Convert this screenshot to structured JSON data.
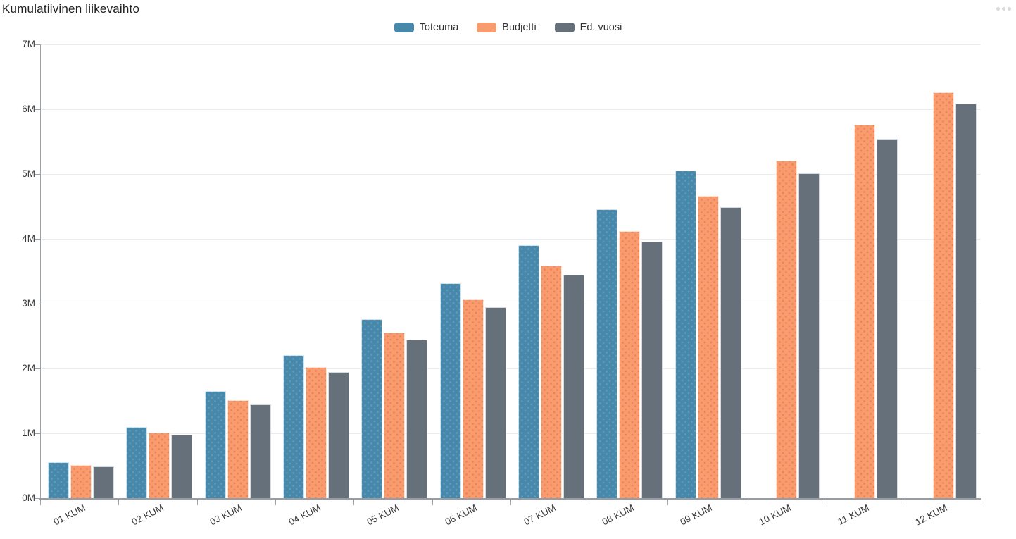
{
  "header": {
    "title": "Kumulatiivinen liikevaihto",
    "menu_icon": "ellipsis-icon"
  },
  "chart_data": {
    "type": "bar",
    "title": "Kumulatiivinen liikevaihto",
    "units": "M",
    "categories": [
      "01 KUM",
      "02 KUM",
      "03 KUM",
      "04 KUM",
      "05 KUM",
      "06 KUM",
      "07 KUM",
      "08 KUM",
      "09 KUM",
      "10 KUM",
      "11 KUM",
      "12 KUM"
    ],
    "series": [
      {
        "name": "Toteuma",
        "color": "#4788AB",
        "pattern_color": "#5F9DBF",
        "values": [
          0.55,
          1.1,
          1.65,
          2.21,
          2.76,
          3.32,
          3.9,
          4.46,
          5.05,
          null,
          null,
          null
        ]
      },
      {
        "name": "Budjetti",
        "color": "#F89B6E",
        "pattern_color": "#EE8052",
        "values": [
          0.51,
          1.01,
          1.51,
          2.02,
          2.55,
          3.06,
          3.59,
          4.12,
          4.66,
          5.21,
          5.76,
          6.26
        ]
      },
      {
        "name": "Ed. vuosi",
        "color": "#66707A",
        "pattern_color": null,
        "values": [
          0.49,
          0.98,
          1.45,
          1.95,
          2.45,
          2.95,
          3.45,
          3.96,
          4.49,
          5.01,
          5.54,
          6.09
        ]
      }
    ],
    "xlabel": "",
    "ylabel": "",
    "ylim": [
      0,
      7
    ],
    "y_tick_labels": [
      "0M",
      "1M",
      "2M",
      "3M",
      "4M",
      "5M",
      "6M",
      "7M"
    ],
    "grid": true,
    "legend_position": "top-center",
    "x_label_rotation": -27,
    "axis_color": "#9aa1a8",
    "gridline_color": "#e9ecf3",
    "label_color": "#3b3b3b"
  }
}
